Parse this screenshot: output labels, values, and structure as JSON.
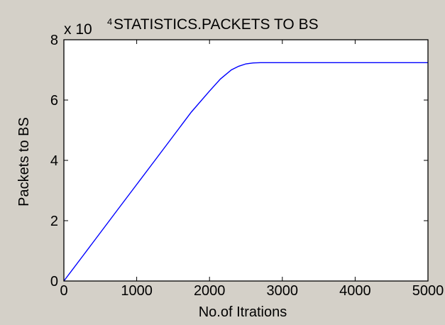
{
  "figure": {
    "background": "#d4d0c8",
    "axes_background": "#ffffff",
    "line_color": "#0000ff",
    "text_color": "#000000"
  },
  "chart_data": {
    "type": "line",
    "title": "STATISTICS.PACKETS TO BS",
    "exponent_label": "x 10",
    "exponent_power": "4",
    "xlabel": "No.of Itrations",
    "ylabel": "Packets to BS",
    "xlim": [
      0,
      5000
    ],
    "ylim": [
      0,
      8
    ],
    "x_ticks": [
      {
        "value": 0,
        "label": "0"
      },
      {
        "value": 1000,
        "label": "1000"
      },
      {
        "value": 2000,
        "label": "2000"
      },
      {
        "value": 3000,
        "label": "3000"
      },
      {
        "value": 4000,
        "label": "4000"
      },
      {
        "value": 5000,
        "label": "5000"
      }
    ],
    "y_ticks": [
      {
        "value": 0,
        "label": "0"
      },
      {
        "value": 2,
        "label": "2"
      },
      {
        "value": 4,
        "label": "4"
      },
      {
        "value": 6,
        "label": "6"
      },
      {
        "value": 8,
        "label": "8"
      }
    ],
    "grid": false,
    "legend": "none",
    "series": [
      {
        "x": [
          0,
          250,
          500,
          750,
          1000,
          1250,
          1500,
          1750,
          2000,
          2150,
          2300,
          2400,
          2500,
          2600,
          2700,
          2800,
          3000,
          3500,
          4000,
          4500,
          5000
        ],
        "y": [
          0,
          0.8,
          1.6,
          2.4,
          3.2,
          4.0,
          4.8,
          5.6,
          6.3,
          6.7,
          7.0,
          7.12,
          7.2,
          7.23,
          7.24,
          7.24,
          7.24,
          7.24,
          7.24,
          7.24,
          7.24
        ]
      }
    ]
  }
}
